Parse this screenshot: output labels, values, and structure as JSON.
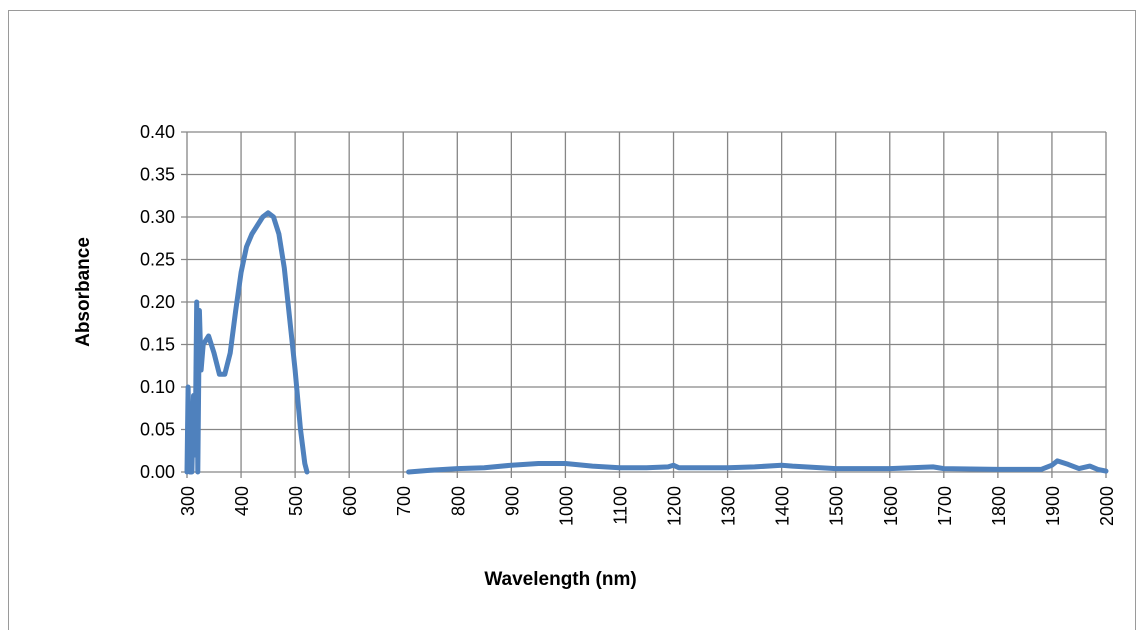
{
  "chart_data": {
    "type": "line",
    "xlabel": "Wavelength (nm)",
    "ylabel": "Absorbance",
    "xlim": [
      300,
      2000
    ],
    "ylim": [
      0,
      0.4
    ],
    "x_ticks": [
      "300",
      "400",
      "500",
      "600",
      "700",
      "800",
      "900",
      "1000",
      "1100",
      "1200",
      "1300",
      "1400",
      "1500",
      "1600",
      "1700",
      "1800",
      "1900",
      "2000"
    ],
    "y_ticks": [
      "0.00",
      "0.05",
      "0.10",
      "0.15",
      "0.20",
      "0.25",
      "0.30",
      "0.35",
      "0.40"
    ],
    "grid": true,
    "line_color": "#4f81bd",
    "series": [
      {
        "segments": [
          [
            [
              300,
              0.0
            ],
            [
              302,
              0.1
            ],
            [
              305,
              0.0
            ],
            [
              309,
              0.0
            ],
            [
              312,
              0.09
            ],
            [
              315,
              0.02
            ],
            [
              318,
              0.2
            ],
            [
              320,
              0.0
            ],
            [
              323,
              0.19
            ],
            [
              326,
              0.12
            ],
            [
              330,
              0.15
            ],
            [
              340,
              0.16
            ],
            [
              350,
              0.14
            ],
            [
              360,
              0.115
            ],
            [
              370,
              0.115
            ],
            [
              380,
              0.14
            ],
            [
              390,
              0.19
            ],
            [
              400,
              0.235
            ],
            [
              410,
              0.265
            ],
            [
              420,
              0.28
            ],
            [
              430,
              0.29
            ],
            [
              440,
              0.3
            ],
            [
              450,
              0.305
            ],
            [
              460,
              0.3
            ],
            [
              470,
              0.28
            ],
            [
              480,
              0.24
            ],
            [
              490,
              0.18
            ],
            [
              500,
              0.12
            ],
            [
              510,
              0.05
            ],
            [
              518,
              0.01
            ],
            [
              522,
              0.0
            ]
          ],
          [
            [
              710,
              0.0
            ],
            [
              750,
              0.002
            ],
            [
              800,
              0.004
            ],
            [
              850,
              0.005
            ],
            [
              900,
              0.008
            ],
            [
              950,
              0.01
            ],
            [
              1000,
              0.01
            ],
            [
              1050,
              0.007
            ],
            [
              1100,
              0.005
            ],
            [
              1150,
              0.005
            ],
            [
              1190,
              0.006
            ],
            [
              1200,
              0.008
            ],
            [
              1210,
              0.005
            ],
            [
              1300,
              0.005
            ],
            [
              1350,
              0.006
            ],
            [
              1400,
              0.008
            ],
            [
              1420,
              0.007
            ],
            [
              1500,
              0.004
            ],
            [
              1600,
              0.004
            ],
            [
              1680,
              0.006
            ],
            [
              1700,
              0.004
            ],
            [
              1800,
              0.003
            ],
            [
              1880,
              0.003
            ],
            [
              1900,
              0.008
            ],
            [
              1910,
              0.013
            ],
            [
              1930,
              0.009
            ],
            [
              1950,
              0.004
            ],
            [
              1970,
              0.007
            ],
            [
              1985,
              0.003
            ],
            [
              2000,
              0.001
            ]
          ]
        ]
      }
    ]
  }
}
